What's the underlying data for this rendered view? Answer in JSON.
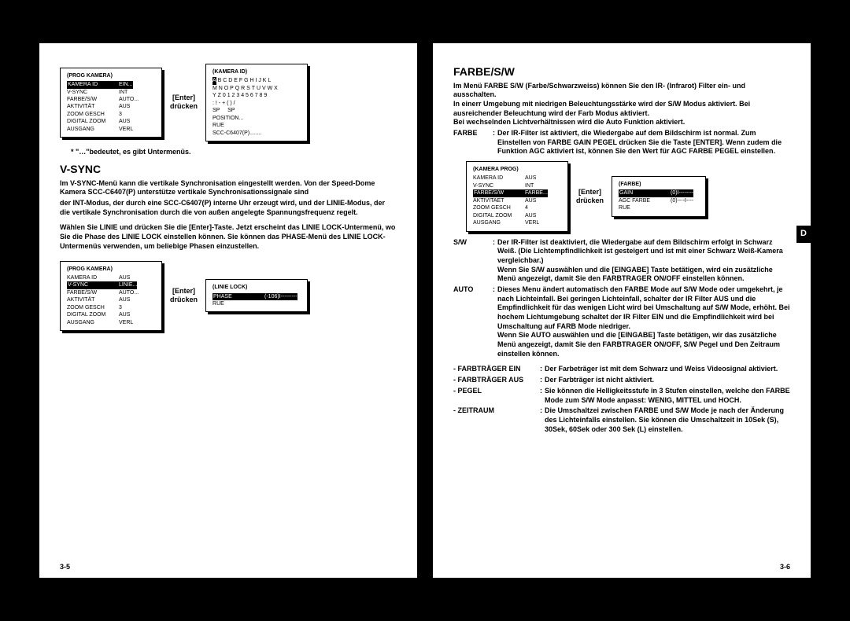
{
  "left": {
    "pagenum": "3-5",
    "heading": "V-SYNC",
    "note": "*  \"…\"bedeutet, es gibt Untermenüs.",
    "para1": "Im V-SYNC-Menü kann die vertikale Synchronisation eingestellt werden. Von der Speed-Dome Kamera SCC-C6407(P) unterstütze vertikale Synchronisationssignale sind",
    "para2": "der INT-Modus, der durch eine SCC-C6407(P) interne Uhr erzeugt wird, und der LINIE-Modus, der die vertikale Synchronisation durch die von außen angelegte Spannungsfrequenz regelt.",
    "para3": "Wählen Sie LINIE und drücken Sie die [Enter]-Taste. Jetzt erscheint das LINIE LOCK-Untermenü, wo Sie die Phase des LINIE LOCK einstellen können. Sie können das PHASE-Menü des LINIE LOCK-Untermenüs verwenden, um beliebige Phasen einzustellen.",
    "arrow": "[Enter]\ndrücken",
    "menu1": {
      "title": "(PROG KAMERA)",
      "rows": [
        {
          "l": "KAMERA ID",
          "v": "EIN...",
          "hl": true
        },
        {
          "l": "V-SYNC",
          "v": "INT"
        },
        {
          "l": "FARBE/S/W",
          "v": "AUTO..."
        },
        {
          "l": "AKTIVITÄT",
          "v": "AUS"
        },
        {
          "l": "ZOOM GESCH",
          "v": "3"
        },
        {
          "l": "DIGITAL ZOOM",
          "v": "AUS"
        },
        {
          "l": "",
          "v": ""
        },
        {
          "l": "AUSGANG",
          "v": "VERL"
        }
      ]
    },
    "menu2": {
      "title": "(KAMERA ID)",
      "lines": [
        "A B C D E F G H I J K L",
        "M N O P Q R S T U V W X",
        "Y Z 0 1 2 3 4 5 6 7 8 9",
        ": ! - + ( ) /",
        "SP     SP",
        "POSITION...",
        "RUE",
        "SCC-C6407(P)........"
      ],
      "hl_first_char": "A"
    },
    "menu3": {
      "title": "(PROG KAMERA)",
      "rows": [
        {
          "l": "KAMERA ID",
          "v": "AUS"
        },
        {
          "l": "V-SYNC",
          "v": "LINIE...",
          "hl": true
        },
        {
          "l": "FARBE/S/W",
          "v": "AUTO..."
        },
        {
          "l": "AKTIVITÄT",
          "v": "AUS"
        },
        {
          "l": "ZOOM GESCH",
          "v": "3"
        },
        {
          "l": "DIGITAL ZOOM",
          "v": "AUS"
        },
        {
          "l": "",
          "v": ""
        },
        {
          "l": "AUSGANG",
          "v": "VERL"
        }
      ]
    },
    "menu4": {
      "title": "(LINIE LOCK)",
      "rows": [
        {
          "l": "",
          "v": ""
        },
        {
          "l": "",
          "v": ""
        },
        {
          "l": "",
          "v": ""
        },
        {
          "l": "PHASE",
          "v": "(-106)I---------",
          "hl": true
        },
        {
          "l": "RUE",
          "v": ""
        }
      ]
    }
  },
  "right": {
    "pagenum": "3-6",
    "tab": "D",
    "heading": "FARBE/S/W",
    "intro": "Im Menü FARBE S/W (Farbe/Schwarzweiss) können Sie den IR- (Infrarot) Filter ein- und ausschalten.\nIn einerr Umgebung mit niedrigen Beleuchtungsstärke wird der S/W Modus aktiviert. Bei ausreichender Beleuchtung wird der Farb Modus aktiviert.\nBei wechselnden Lichtverhältnissen wird die Auto Funktion aktiviert.",
    "farbe_term": "FARBE",
    "farbe_def": "Der IR-Filter ist aktiviert, die Wiedergabe auf dem Bildschirm ist normal. Zum Einstellen von FARBE GAIN PEGEL drücken Sie die Taste [ENTER]. Wenn zudem die Funktion AGC aktiviert ist, können Sie den Wert für AGC FARBE PEGEL einstellen.",
    "arrow": "[Enter]\ndrücken",
    "menu1": {
      "title": "(KAMERA PROG)",
      "rows": [
        {
          "l": "KAMERA ID",
          "v": "AUS"
        },
        {
          "l": "V-SYNC",
          "v": "INT"
        },
        {
          "l": "FARBE/S/W",
          "v": "FARBE...",
          "hl": true
        },
        {
          "l": "AKTIVITAET",
          "v": "AUS"
        },
        {
          "l": "ZOOM GESCH",
          "v": "4"
        },
        {
          "l": "DIGITAL ZOOM",
          "v": "AUS"
        },
        {
          "l": "",
          "v": ""
        },
        {
          "l": "AUSGANG",
          "v": "VERL"
        }
      ]
    },
    "menu2": {
      "title": "(FARBE)",
      "rows": [
        {
          "l": "",
          "v": ""
        },
        {
          "l": "",
          "v": ""
        },
        {
          "l": "GAIN",
          "v": "(0)I--------",
          "hl": true
        },
        {
          "l": "AGC FARBE",
          "v": "(0)----I----"
        },
        {
          "l": "RUE",
          "v": ""
        }
      ]
    },
    "sw_term": "S/W",
    "sw_def": "Der IR-Filter ist deaktiviert, die Wiedergabe auf dem Bildschirm erfolgt in Schwarz Weiß. (Die Lichtempfindlichkeit ist gesteigert und ist mit einer Schwarz Weiß-Kamera vergleichbar.)\nWenn Sie S/W auswählen und die [EINGABE] Taste betätigen, wird ein zusätzliche Menü angezeigt, damit Sie den FARBTRAGER ON/OFF einstellen können.",
    "auto_term": "AUTO",
    "auto_def": "Dieses Menu ändert automatisch den FARBE Mode auf S/W Mode oder umgekehrt, je nach Lichteinfall. Bei geringen Lichteinfall, schalter der IR Filter AUS und die Empfindlichkeit für das wenigen Licht wird bei Umschaltung auf S/W Mode, erhöht. Bei hochem Lichtumgebung schaltet der IR Filter EIN und die Empfindlichkeit wird bei Umschaltung auf FARB Mode niedriger.\nWenn Sie AUTO auswählen und die [EINGABE] Taste betätigen, wir das zusätzliche Menü angezeigt, damit Sie den FARBTRAGER ON/OFF, S/W Pegel und Den Zeitraum einstellen können.",
    "sub_defs": [
      {
        "t": "- FARBTRÄGER EIN",
        "d": "Der Farbeträger ist mit dem Schwarz und Weiss Videosignal aktiviert."
      },
      {
        "t": "- FARBTRÄGER AUS",
        "d": "Der Farbträger ist nicht aktiviert."
      },
      {
        "t": "- PEGEL",
        "d": "Sie können die Helligkeitsstufe in 3 Stufen einstellen, welche den FARBE Mode zum S/W Mode anpasst: WENIG, MITTEL und HOCH."
      },
      {
        "t": "- ZEITRAUM",
        "d": "Die Umschaltzei zwischen FARBE und S/W Mode je nach der Änderung des Lichteinfalls einstellen. Sie können die Umschaltzeit in 10Sek (S), 30Sek, 60Sek oder 300 Sek (L) einstellen."
      }
    ]
  }
}
